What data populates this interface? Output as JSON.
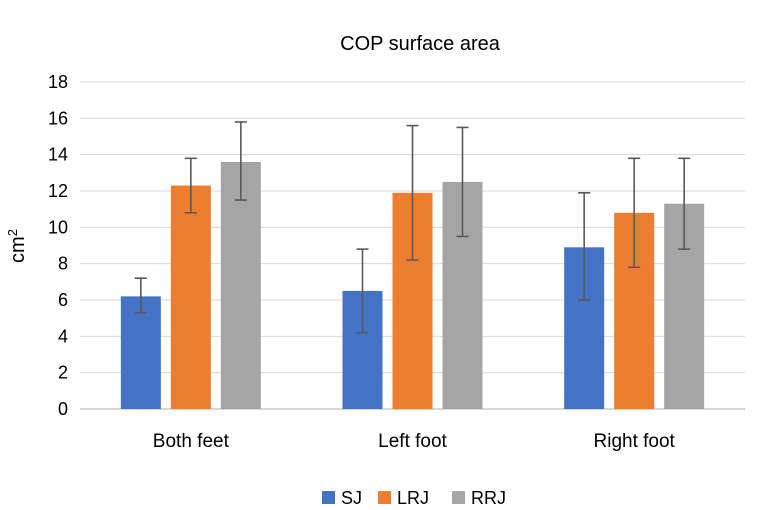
{
  "chart_data": {
    "type": "bar",
    "title": "COP surface area",
    "ylabel_base": "cm",
    "ylabel_sup": "2",
    "ylim": [
      0,
      18
    ],
    "yticks": [
      0,
      2,
      4,
      6,
      8,
      10,
      12,
      14,
      16,
      18
    ],
    "grid": true,
    "legend_position": "bottom",
    "categories": [
      "Both feet",
      "Left foot",
      "Right foot"
    ],
    "series": [
      {
        "name": "SJ",
        "color": "#4472c4",
        "values": [
          6.2,
          6.5,
          8.9
        ],
        "err_low": [
          5.3,
          4.2,
          6.0
        ],
        "err_high": [
          7.2,
          8.8,
          11.9
        ]
      },
      {
        "name": "LRJ",
        "color": "#ed7d31",
        "values": [
          12.3,
          11.9,
          10.8
        ],
        "err_low": [
          10.8,
          8.2,
          7.8
        ],
        "err_high": [
          13.8,
          15.6,
          13.8
        ]
      },
      {
        "name": "RRJ",
        "color": "#a5a5a5",
        "values": [
          13.6,
          12.5,
          11.3
        ],
        "err_low": [
          11.5,
          9.5,
          8.8
        ],
        "err_high": [
          15.8,
          15.5,
          13.8
        ]
      }
    ]
  }
}
